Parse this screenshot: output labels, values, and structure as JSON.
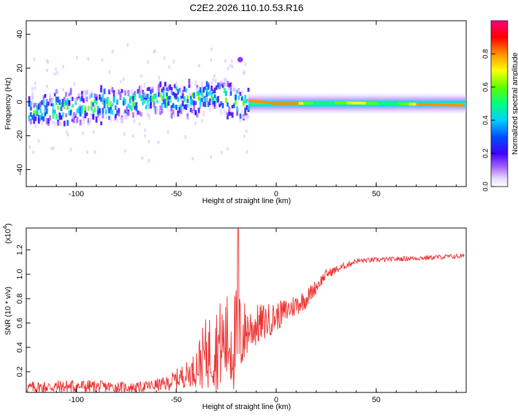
{
  "title": "C2E2.2026.110.10.53.R16",
  "colors": {
    "snr_line": "#ee3333",
    "axis": "#000000"
  },
  "colorbar": {
    "label": "Normalized spectral amplitude",
    "ticks": [
      "0.0",
      "0.2",
      "0.4",
      "0.6",
      "0.8"
    ],
    "tick_values": [
      0.0,
      0.2,
      0.4,
      0.6,
      0.8
    ],
    "range": [
      0,
      1
    ]
  },
  "chart_data": [
    {
      "type": "heatmap",
      "title": "C2E2.2026.110.10.53.R16",
      "xlabel": "Height of straight line (km)",
      "ylabel": "Frequency (Hz)",
      "xlim": [
        -125,
        95
      ],
      "ylim": [
        -50,
        48
      ],
      "xticks": [
        -100,
        -50,
        0,
        50
      ],
      "xtick_labels": [
        "-100",
        "-50",
        "0",
        "50"
      ],
      "yticks": [
        -40,
        -20,
        0,
        20,
        40
      ],
      "ytick_labels": [
        "-40",
        "-20",
        "0",
        "20",
        "40"
      ],
      "trend": [
        {
          "x": -124,
          "y": -4
        },
        {
          "x": -100,
          "y": -2
        },
        {
          "x": -80,
          "y": 0
        },
        {
          "x": -60,
          "y": 3
        },
        {
          "x": -40,
          "y": 3
        },
        {
          "x": -30,
          "y": 6
        },
        {
          "x": -20,
          "y": 0
        },
        {
          "x": -15,
          "y": 1
        },
        {
          "x": 0,
          "y": -1
        },
        {
          "x": 30,
          "y": -0.5
        },
        {
          "x": 60,
          "y": -1
        },
        {
          "x": 93,
          "y": -2
        }
      ],
      "outlier_point": {
        "x": -18,
        "y": 25
      }
    },
    {
      "type": "line",
      "xlabel": "Height of straight line (km)",
      "ylabel": "SNR (10 * v/v)",
      "scale_label": "(x10",
      "scale_exponent": "4",
      "xlim": [
        -125,
        95
      ],
      "ylim": [
        0.03,
        1.38
      ],
      "xticks": [
        -100,
        -50,
        0,
        50
      ],
      "xtick_labels": [
        "-100",
        "-50",
        "0",
        "50"
      ],
      "yticks": [
        0.2,
        0.4,
        0.6,
        0.8,
        1.0,
        1.2
      ],
      "ytick_labels": [
        "0.2",
        "0.4",
        "0.6",
        "0.8",
        "1.0",
        "1.2"
      ],
      "envelope": [
        {
          "x": -124,
          "base": 0.07,
          "amp": 0.05
        },
        {
          "x": -100,
          "base": 0.08,
          "amp": 0.06
        },
        {
          "x": -70,
          "base": 0.07,
          "amp": 0.04
        },
        {
          "x": -55,
          "base": 0.1,
          "amp": 0.06
        },
        {
          "x": -42,
          "base": 0.2,
          "amp": 0.12
        },
        {
          "x": -35,
          "base": 0.35,
          "amp": 0.3
        },
        {
          "x": -25,
          "base": 0.45,
          "amp": 0.4
        },
        {
          "x": -20,
          "base": 0.45,
          "amp": 0.45
        },
        {
          "x": -14,
          "base": 0.55,
          "amp": 0.2
        },
        {
          "x": 0,
          "base": 0.65,
          "amp": 0.12
        },
        {
          "x": 15,
          "base": 0.8,
          "amp": 0.08
        },
        {
          "x": 25,
          "base": 1.0,
          "amp": 0.04
        },
        {
          "x": 40,
          "base": 1.11,
          "amp": 0.02
        },
        {
          "x": 93,
          "base": 1.15,
          "amp": 0.02
        }
      ],
      "peak": {
        "x": -19,
        "y": 1.38
      }
    }
  ]
}
